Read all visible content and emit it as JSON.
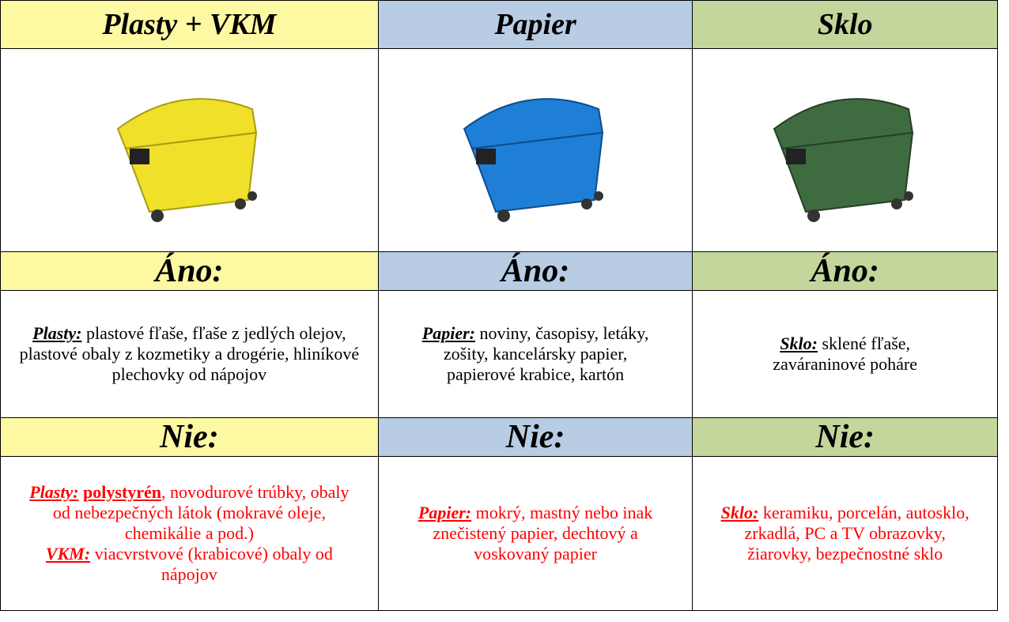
{
  "columns": [
    {
      "title": "Plasty + VKM",
      "yes_heading": "Áno:",
      "yes": {
        "label": "Plasty:",
        "text": "plastové fľaše, fľaše z jedlých olejov, plastové obaly z kozmetiky a drogérie, hliníkové plechovky od nápojov"
      },
      "no_heading": "Nie:",
      "no": {
        "segments": [
          "Plasty:",
          "polystyrén",
          ", novodurové trúbky, obaly od nebezpečných látok (mokravé oleje, chemikálie a pod.)",
          "VKM:",
          "viacvrstvové (krabicové) obaly od nápojov"
        ]
      }
    },
    {
      "title": "Papier",
      "yes_heading": "Áno:",
      "yes": {
        "label": "Papier:",
        "text": "noviny, časopisy, letáky, zošity, kancelársky papier, papierové krabice, kartón"
      },
      "no_heading": "Nie:",
      "no": {
        "segments": [
          "Papier:",
          "mokrý, mastný nebo inak znečistený papier, dechtový a voskovaný papier"
        ]
      }
    },
    {
      "title": "Sklo",
      "yes_heading": "Áno:",
      "yes": {
        "label": "Sklo:",
        "text": "sklené fľaše, zaváraninové poháre"
      },
      "no_heading": "Nie:",
      "no": {
        "segments": [
          "Sklo:",
          "keramiku, porcelán, autosklo, zrkadlá, PC a TV obrazovky, žiarovky, bezpečnostné sklo"
        ]
      }
    }
  ]
}
